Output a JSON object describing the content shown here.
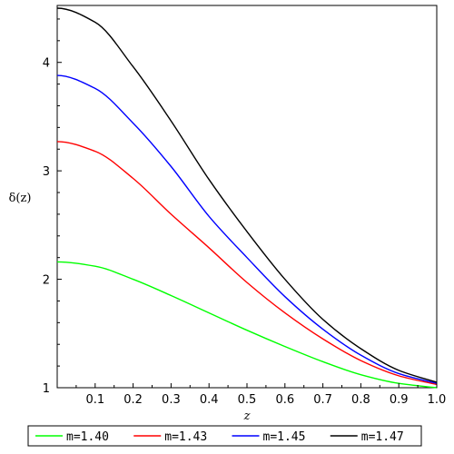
{
  "chart_data": {
    "type": "line",
    "title": "",
    "xlabel": "z",
    "ylabel": "δ(z)",
    "xlim": [
      0,
      1
    ],
    "ylim": [
      1,
      4.5
    ],
    "x_ticks": [
      0.1,
      0.2,
      0.3,
      0.4,
      0.5,
      0.6,
      0.7,
      0.8,
      0.9,
      1.0
    ],
    "x_tick_labels": [
      "0.1",
      "0.2",
      "0.3",
      "0.4",
      "0.5",
      "0.6",
      "0.7",
      "0.8",
      "0.9",
      "1.0"
    ],
    "y_ticks": [
      1,
      2,
      3,
      4
    ],
    "y_tick_labels": [
      "1",
      "2",
      "3",
      "4"
    ],
    "grid": false,
    "legend_position": "bottom",
    "series": [
      {
        "name": "m=1.40",
        "color": "#00ff00",
        "x": [
          0,
          0.1,
          0.2,
          0.3,
          0.4,
          0.5,
          0.6,
          0.7,
          0.8,
          0.9,
          1.0
        ],
        "y": [
          2.16,
          2.12,
          2.0,
          1.85,
          1.69,
          1.53,
          1.38,
          1.24,
          1.12,
          1.04,
          1.0
        ]
      },
      {
        "name": "m=1.43",
        "color": "#ff0000",
        "x": [
          0,
          0.1,
          0.2,
          0.3,
          0.4,
          0.5,
          0.6,
          0.7,
          0.8,
          0.9,
          1.0
        ],
        "y": [
          3.27,
          3.18,
          2.93,
          2.6,
          2.29,
          1.97,
          1.69,
          1.45,
          1.25,
          1.11,
          1.03
        ]
      },
      {
        "name": "m=1.45",
        "color": "#0000ff",
        "x": [
          0,
          0.1,
          0.2,
          0.3,
          0.4,
          0.5,
          0.6,
          0.7,
          0.8,
          0.9,
          1.0
        ],
        "y": [
          3.88,
          3.76,
          3.44,
          3.04,
          2.58,
          2.2,
          1.84,
          1.54,
          1.3,
          1.13,
          1.04
        ]
      },
      {
        "name": "m=1.47",
        "color": "#000000",
        "x": [
          0,
          0.1,
          0.2,
          0.3,
          0.4,
          0.5,
          0.6,
          0.7,
          0.8,
          0.9,
          1.0
        ],
        "y": [
          4.5,
          4.37,
          3.96,
          3.46,
          2.92,
          2.44,
          2.0,
          1.63,
          1.36,
          1.16,
          1.05
        ]
      }
    ]
  }
}
